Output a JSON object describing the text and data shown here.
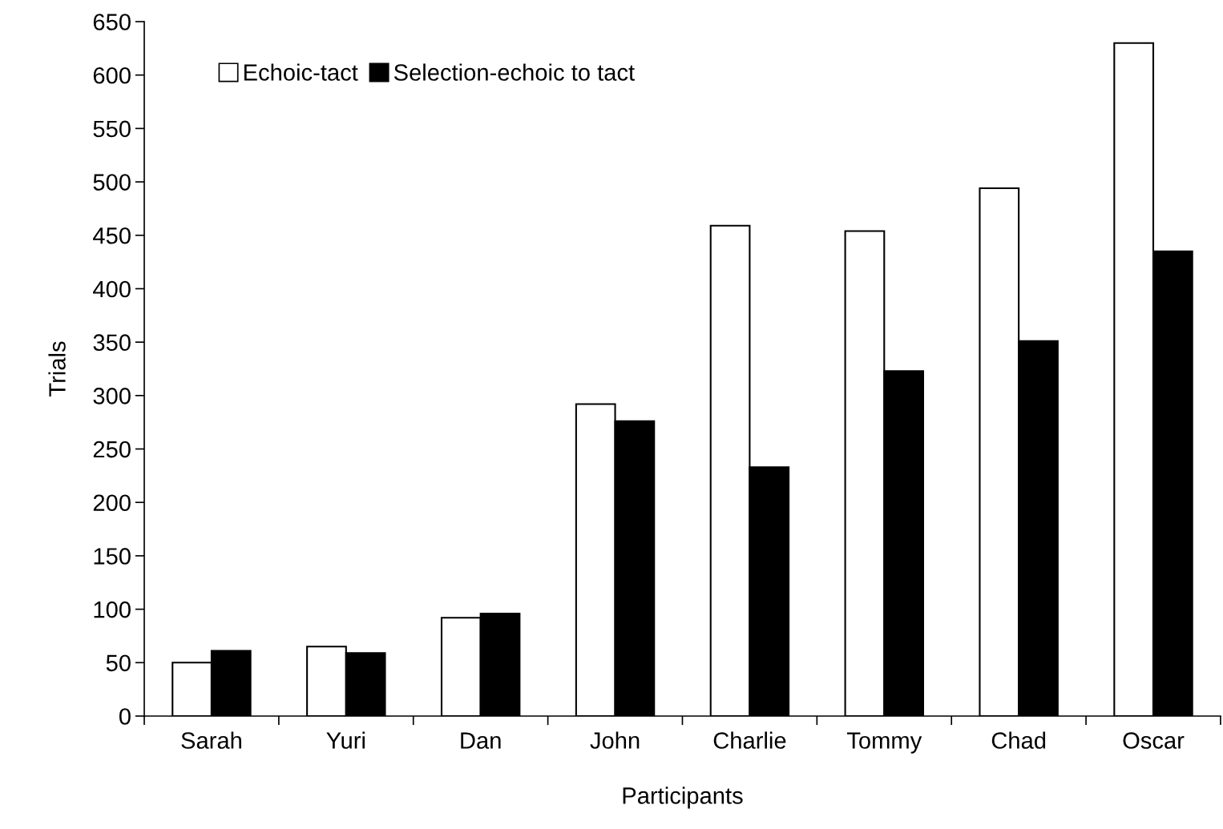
{
  "chart_data": {
    "type": "bar",
    "xlabel": "Participants",
    "ylabel": "Trials",
    "categories": [
      "Sarah",
      "Yuri",
      "Dan",
      "John",
      "Charlie",
      "Tommy",
      "Chad",
      "Oscar"
    ],
    "series": [
      {
        "name": "Echoic-tact",
        "color": "#ffffff",
        "values": [
          50,
          65,
          92,
          292,
          459,
          454,
          494,
          630
        ]
      },
      {
        "name": "Selection-echoic to tact",
        "color": "#000000",
        "values": [
          61,
          59,
          96,
          276,
          233,
          323,
          351,
          435
        ]
      }
    ],
    "ylim": [
      0,
      650
    ],
    "yticks": [
      0,
      50,
      100,
      150,
      200,
      250,
      300,
      350,
      400,
      450,
      500,
      550,
      600,
      650
    ],
    "grid": false,
    "legend": "top left"
  }
}
